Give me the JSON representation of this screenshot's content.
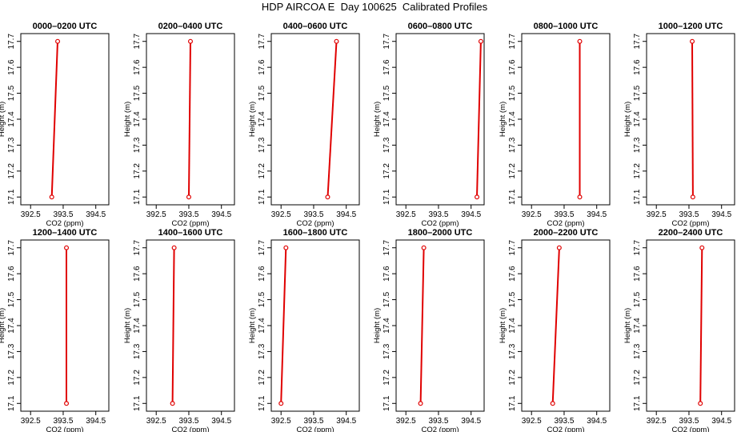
{
  "figure": {
    "title": "HDP AIRCOA E  Day 100625  Calibrated Profiles"
  },
  "chart_data": [
    {
      "type": "line",
      "title": "0000–0200 UTC",
      "xlabel": "CO2 (ppm)",
      "ylabel": "Height (m)",
      "xlim": [
        392.2,
        394.9
      ],
      "ylim": [
        17.07,
        17.73
      ],
      "xticks": [
        "392.5",
        "393.5",
        "394.5"
      ],
      "yticks": [
        "17.1",
        "17.2",
        "17.3",
        "17.4",
        "17.5",
        "17.6",
        "17.7"
      ],
      "series": [
        {
          "x": [
            393.15,
            393.33
          ],
          "y": [
            17.1,
            17.7
          ]
        }
      ]
    },
    {
      "type": "line",
      "title": "0200–0400 UTC",
      "xlabel": "CO2 (ppm)",
      "ylabel": "Height (m)",
      "xlim": [
        392.2,
        394.9
      ],
      "ylim": [
        17.07,
        17.73
      ],
      "xticks": [
        "392.5",
        "393.5",
        "394.5"
      ],
      "yticks": [
        "17.1",
        "17.2",
        "17.3",
        "17.4",
        "17.5",
        "17.6",
        "17.7"
      ],
      "series": [
        {
          "x": [
            393.5,
            393.55
          ],
          "y": [
            17.1,
            17.7
          ]
        }
      ]
    },
    {
      "type": "line",
      "title": "0400–0600 UTC",
      "xlabel": "CO2 (ppm)",
      "ylabel": "Height (m)",
      "xlim": [
        392.2,
        394.9
      ],
      "ylim": [
        17.07,
        17.73
      ],
      "xticks": [
        "392.5",
        "393.5",
        "394.5"
      ],
      "yticks": [
        "17.1",
        "17.2",
        "17.3",
        "17.4",
        "17.5",
        "17.6",
        "17.7"
      ],
      "series": [
        {
          "x": [
            393.93,
            394.2
          ],
          "y": [
            17.1,
            17.7
          ]
        }
      ]
    },
    {
      "type": "line",
      "title": "0600–0800 UTC",
      "xlabel": "CO2 (ppm)",
      "ylabel": "Height (m)",
      "xlim": [
        392.2,
        394.9
      ],
      "ylim": [
        17.07,
        17.73
      ],
      "xticks": [
        "392.5",
        "393.5",
        "394.5"
      ],
      "yticks": [
        "17.1",
        "17.2",
        "17.3",
        "17.4",
        "17.5",
        "17.6",
        "17.7"
      ],
      "series": [
        {
          "x": [
            394.68,
            394.8
          ],
          "y": [
            17.1,
            17.7
          ]
        }
      ]
    },
    {
      "type": "line",
      "title": "0800–1000 UTC",
      "xlabel": "CO2 (ppm)",
      "ylabel": "Height (m)",
      "xlim": [
        392.2,
        394.9
      ],
      "ylim": [
        17.07,
        17.73
      ],
      "xticks": [
        "392.5",
        "393.5",
        "394.5"
      ],
      "yticks": [
        "17.1",
        "17.2",
        "17.3",
        "17.4",
        "17.5",
        "17.6",
        "17.7"
      ],
      "series": [
        {
          "x": [
            393.98,
            393.98
          ],
          "y": [
            17.1,
            17.7
          ]
        }
      ]
    },
    {
      "type": "line",
      "title": "1000–1200 UTC",
      "xlabel": "CO2 (ppm)",
      "ylabel": "Height (m)",
      "xlim": [
        392.2,
        394.9
      ],
      "ylim": [
        17.07,
        17.73
      ],
      "xticks": [
        "392.5",
        "393.5",
        "394.5"
      ],
      "yticks": [
        "17.1",
        "17.2",
        "17.3",
        "17.4",
        "17.5",
        "17.6",
        "17.7"
      ],
      "series": [
        {
          "x": [
            393.62,
            393.6
          ],
          "y": [
            17.1,
            17.7
          ]
        }
      ]
    },
    {
      "type": "line",
      "title": "1200–1400 UTC",
      "xlabel": "CO2 (ppm)",
      "ylabel": "Height (m)",
      "xlim": [
        392.2,
        394.9
      ],
      "ylim": [
        17.07,
        17.73
      ],
      "xticks": [
        "392.5",
        "393.5",
        "394.5"
      ],
      "yticks": [
        "17.1",
        "17.2",
        "17.3",
        "17.4",
        "17.5",
        "17.6",
        "17.7"
      ],
      "series": [
        {
          "x": [
            393.6,
            393.6
          ],
          "y": [
            17.1,
            17.7
          ]
        }
      ]
    },
    {
      "type": "line",
      "title": "1400–1600 UTC",
      "xlabel": "CO2 (ppm)",
      "ylabel": "Height (m)",
      "xlim": [
        392.2,
        394.9
      ],
      "ylim": [
        17.07,
        17.73
      ],
      "xticks": [
        "392.5",
        "393.5",
        "394.5"
      ],
      "yticks": [
        "17.1",
        "17.2",
        "17.3",
        "17.4",
        "17.5",
        "17.6",
        "17.7"
      ],
      "series": [
        {
          "x": [
            393.0,
            393.05
          ],
          "y": [
            17.1,
            17.7
          ]
        }
      ]
    },
    {
      "type": "line",
      "title": "1600–1800 UTC",
      "xlabel": "CO2 (ppm)",
      "ylabel": "Height (m)",
      "xlim": [
        392.2,
        394.9
      ],
      "ylim": [
        17.07,
        17.73
      ],
      "xticks": [
        "392.5",
        "393.5",
        "394.5"
      ],
      "yticks": [
        "17.1",
        "17.2",
        "17.3",
        "17.4",
        "17.5",
        "17.6",
        "17.7"
      ],
      "series": [
        {
          "x": [
            392.5,
            392.65
          ],
          "y": [
            17.1,
            17.7
          ]
        }
      ]
    },
    {
      "type": "line",
      "title": "1800–2000 UTC",
      "xlabel": "CO2 (ppm)",
      "ylabel": "Height (m)",
      "xlim": [
        392.2,
        394.9
      ],
      "ylim": [
        17.07,
        17.73
      ],
      "xticks": [
        "392.5",
        "393.5",
        "394.5"
      ],
      "yticks": [
        "17.1",
        "17.2",
        "17.3",
        "17.4",
        "17.5",
        "17.6",
        "17.7"
      ],
      "series": [
        {
          "x": [
            392.95,
            393.05
          ],
          "y": [
            17.1,
            17.7
          ]
        }
      ]
    },
    {
      "type": "line",
      "title": "2000–2200 UTC",
      "xlabel": "CO2 (ppm)",
      "ylabel": "Height (m)",
      "xlim": [
        392.2,
        394.9
      ],
      "ylim": [
        17.07,
        17.73
      ],
      "xticks": [
        "392.5",
        "393.5",
        "394.5"
      ],
      "yticks": [
        "17.1",
        "17.2",
        "17.3",
        "17.4",
        "17.5",
        "17.6",
        "17.7"
      ],
      "series": [
        {
          "x": [
            393.15,
            393.35
          ],
          "y": [
            17.1,
            17.7
          ]
        }
      ]
    },
    {
      "type": "line",
      "title": "2200–2400 UTC",
      "xlabel": "CO2 (ppm)",
      "ylabel": "Height (m)",
      "xlim": [
        392.2,
        394.9
      ],
      "ylim": [
        17.07,
        17.73
      ],
      "xticks": [
        "392.5",
        "393.5",
        "394.5"
      ],
      "yticks": [
        "17.1",
        "17.2",
        "17.3",
        "17.4",
        "17.5",
        "17.6",
        "17.7"
      ],
      "series": [
        {
          "x": [
            393.85,
            393.9
          ],
          "y": [
            17.1,
            17.7
          ]
        }
      ]
    }
  ],
  "colors": {
    "profile": "#e00000",
    "axis": "#000000"
  }
}
